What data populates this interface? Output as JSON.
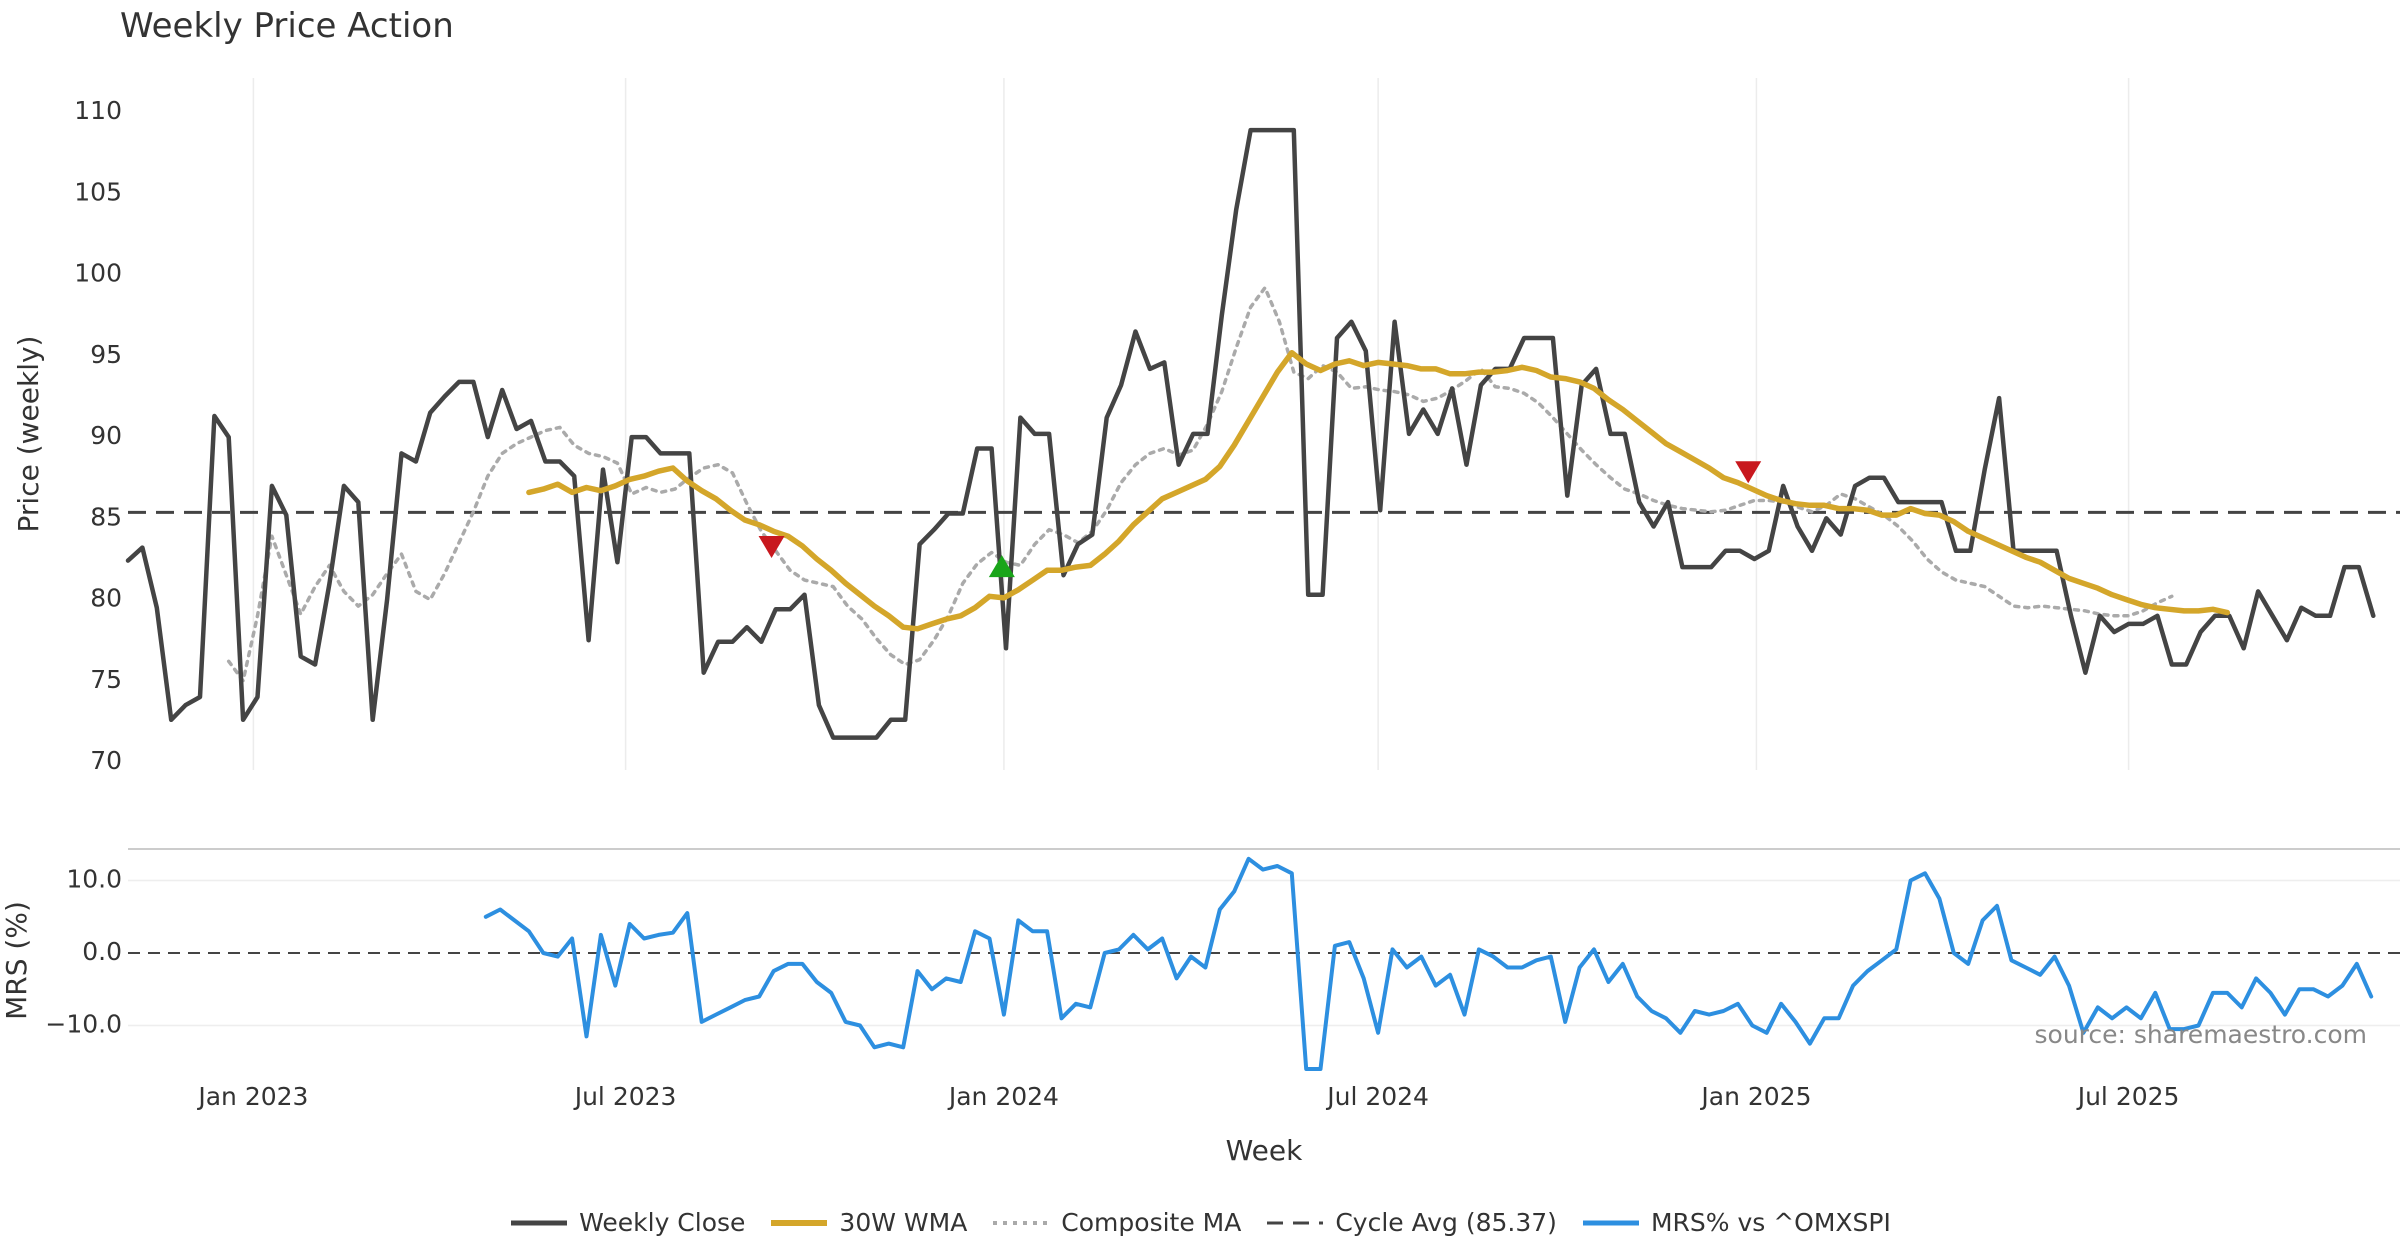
{
  "title": "Weekly Price Action",
  "source": "source: sharemaestro.com",
  "colors": {
    "close": "#444444",
    "wma": "#d4a62a",
    "composite": "#aaaaaa",
    "cycle": "#444444",
    "mrs": "#2d8fe0",
    "marker_up": "#1aa51a",
    "marker_down": "#c8181e"
  },
  "legend": [
    {
      "label": "Weekly Close",
      "key": "close"
    },
    {
      "label": "30W WMA",
      "key": "wma"
    },
    {
      "label": "Composite MA",
      "key": "composite"
    },
    {
      "label": "Cycle Avg (85.37)",
      "key": "cycle"
    },
    {
      "label": "MRS% vs ^OMXSPI",
      "key": "mrs"
    }
  ],
  "chart_data": [
    {
      "type": "line",
      "title": "Weekly Price Action",
      "ylabel": "Price (weekly)",
      "xlabel": "Week",
      "x_domain": [
        "2022-11-01",
        "2025-11-10"
      ],
      "ylim": [
        70,
        111
      ],
      "yticks": [
        70,
        75,
        80,
        85,
        90,
        95,
        100,
        105,
        110
      ],
      "xticks": [
        {
          "date": "2023-01-01",
          "label": "Jan 2023"
        },
        {
          "date": "2023-07-01",
          "label": "Jul 2023"
        },
        {
          "date": "2024-01-01",
          "label": "Jan 2024"
        },
        {
          "date": "2024-07-01",
          "label": "Jul 2024"
        },
        {
          "date": "2025-01-01",
          "label": "Jan 2025"
        },
        {
          "date": "2025-07-01",
          "label": "Jul 2025"
        }
      ],
      "cycle_avg": 85.37,
      "series": [
        {
          "name": "Weekly Close",
          "start": "2022-11-01",
          "step_days": 7,
          "values": [
            82.4,
            83.2,
            79.5,
            72.6,
            73.5,
            74.0,
            91.3,
            90.0,
            72.6,
            74.0,
            87.0,
            85.2,
            76.5,
            76.0,
            81.0,
            87.0,
            86.0,
            72.6,
            80.0,
            89.0,
            88.5,
            91.5,
            92.5,
            93.4,
            93.4,
            90.0,
            92.9,
            90.5,
            91.0,
            88.5,
            88.5,
            87.6,
            77.5,
            88.0,
            82.3,
            90.0,
            90.0,
            89.0,
            89.0,
            89.0,
            75.5,
            77.4,
            77.4,
            78.3,
            77.4,
            79.4,
            79.4,
            80.3,
            73.5,
            71.5,
            71.5,
            71.5,
            71.5,
            72.6,
            72.6,
            83.4,
            84.3,
            85.3,
            85.3,
            89.3,
            89.3,
            77.0,
            91.2,
            90.2,
            90.2,
            81.5,
            83.4,
            84.0,
            91.2,
            93.2,
            96.5,
            94.2,
            94.6,
            88.3,
            90.2,
            90.2,
            97.5,
            104.0,
            108.9,
            108.9,
            108.9,
            108.9,
            80.3,
            80.3,
            96.1,
            97.1,
            95.3,
            85.5,
            97.1,
            90.2,
            91.7,
            90.2,
            93.0,
            88.3,
            93.2,
            94.2,
            94.2,
            96.1,
            96.1,
            96.1,
            86.4,
            93.2,
            94.2,
            90.2,
            90.2,
            86.0,
            84.5,
            86.0,
            82.0,
            82.0,
            82.0,
            83.0,
            83.0,
            82.5,
            83.0,
            87.0,
            84.5,
            83.0,
            85.0,
            84.0,
            87.0,
            87.5,
            87.5,
            86.0,
            86.0,
            86.0,
            86.0,
            83.0,
            83.0,
            88.0,
            92.4,
            83.0,
            83.0,
            83.0,
            83.0,
            79.0,
            75.5,
            79.0,
            78.0,
            78.5,
            78.5,
            79.0,
            76.0,
            76.0,
            78.0,
            79.0,
            79.0,
            77.0,
            80.5,
            79.0,
            77.5,
            79.5,
            79.0,
            79.0,
            82.0,
            82.0,
            79.0
          ]
        },
        {
          "name": "30W WMA",
          "start": "2023-05-15",
          "step_days": 7,
          "values": [
            86.6,
            86.8,
            87.1,
            86.6,
            86.9,
            86.7,
            87.0,
            87.4,
            87.6,
            87.9,
            88.1,
            87.3,
            86.7,
            86.2,
            85.5,
            84.9,
            84.6,
            84.2,
            83.9,
            83.3,
            82.5,
            81.8,
            81.0,
            80.3,
            79.6,
            79.0,
            78.3,
            78.2,
            78.5,
            78.8,
            79.0,
            79.5,
            80.2,
            80.1,
            80.6,
            81.2,
            81.8,
            81.8,
            82.0,
            82.1,
            82.8,
            83.6,
            84.6,
            85.4,
            86.2,
            86.6,
            87.0,
            87.4,
            88.2,
            89.5,
            91.0,
            92.5,
            94.0,
            95.2,
            94.5,
            94.1,
            94.5,
            94.7,
            94.4,
            94.6,
            94.5,
            94.4,
            94.2,
            94.2,
            93.9,
            93.9,
            94.0,
            94.0,
            94.1,
            94.3,
            94.1,
            93.7,
            93.6,
            93.4,
            93.0,
            92.3,
            91.7,
            91.0,
            90.3,
            89.6,
            89.1,
            88.6,
            88.1,
            87.5,
            87.2,
            86.8,
            86.4,
            86.1,
            85.9,
            85.8,
            85.8,
            85.6,
            85.6,
            85.5,
            85.2,
            85.2,
            85.6,
            85.3,
            85.2,
            84.8,
            84.2,
            83.8,
            83.4,
            83.0,
            82.6,
            82.3,
            81.8,
            81.3,
            81.0,
            80.7,
            80.3,
            80.0,
            79.7,
            79.5,
            79.4,
            79.3,
            79.3,
            79.4,
            79.2
          ]
        },
        {
          "name": "Composite MA",
          "start": "2022-12-20",
          "step_days": 7,
          "values": [
            76.2,
            75.0,
            79.0,
            83.9,
            81.5,
            79.1,
            80.8,
            82.1,
            80.5,
            79.6,
            80.3,
            81.6,
            82.8,
            80.5,
            80.0,
            81.6,
            83.5,
            85.4,
            87.6,
            89.0,
            89.6,
            90.0,
            90.4,
            90.6,
            89.5,
            89.0,
            88.8,
            88.4,
            86.5,
            86.9,
            86.6,
            86.8,
            87.5,
            88.1,
            88.3,
            87.8,
            85.9,
            84.2,
            83.0,
            81.8,
            81.2,
            81.0,
            80.8,
            79.6,
            78.8,
            77.6,
            76.6,
            76.0,
            76.3,
            77.5,
            79.0,
            81.0,
            82.2,
            82.9,
            82.3,
            82.1,
            83.4,
            84.3,
            84.0,
            83.5,
            84.2,
            85.5,
            87.2,
            88.3,
            89.0,
            89.3,
            88.9,
            89.2,
            90.8,
            92.8,
            95.5,
            98.0,
            99.2,
            97.1,
            94.0,
            93.6,
            94.4,
            94.0,
            93.0,
            93.1,
            92.9,
            92.8,
            92.6,
            92.2,
            92.4,
            92.9,
            93.5,
            94.2,
            93.1,
            93.0,
            92.7,
            92.1,
            91.2,
            90.2,
            89.2,
            88.3,
            87.5,
            86.8,
            86.5,
            86.1,
            85.8,
            85.6,
            85.5,
            85.4,
            85.5,
            85.8,
            86.1,
            86.1,
            86.0,
            85.7,
            85.4,
            85.8,
            86.5,
            86.2,
            85.7,
            85.2,
            84.5,
            83.6,
            82.5,
            81.7,
            81.2,
            81.0,
            80.8,
            80.2,
            79.6,
            79.5,
            79.6,
            79.5,
            79.4,
            79.3,
            79.1,
            79.0,
            79.0,
            79.3,
            79.8,
            80.2
          ]
        }
      ],
      "markers": [
        {
          "type": "sell",
          "date": "2023-09-10",
          "value": 83.3
        },
        {
          "type": "buy",
          "date": "2023-12-31",
          "value": 82.0
        },
        {
          "type": "sell",
          "date": "2024-12-28",
          "value": 87.9
        }
      ]
    },
    {
      "type": "line",
      "ylabel": "MRS (%)",
      "ylim": [
        -17,
        14
      ],
      "yticks": [
        {
          "value": 10,
          "label": "10.0"
        },
        {
          "value": 0,
          "label": "0.0"
        },
        {
          "value": -10,
          "label": "−10.0"
        }
      ],
      "series": [
        {
          "name": "MRS% vs ^OMXSPI",
          "start": "2023-04-24",
          "step_days": 7,
          "values": [
            5.0,
            6.0,
            4.5,
            3.0,
            0.0,
            -0.5,
            2.0,
            -11.5,
            2.5,
            -4.5,
            4.0,
            2.0,
            2.5,
            2.8,
            5.5,
            -9.5,
            -8.5,
            -7.5,
            -6.5,
            -6.0,
            -2.5,
            -1.5,
            -1.5,
            -4.0,
            -5.5,
            -9.5,
            -10.0,
            -13.0,
            -12.5,
            -13.0,
            -2.5,
            -5.0,
            -3.5,
            -4.0,
            3.0,
            2.0,
            -8.5,
            4.5,
            3.0,
            3.0,
            -9.0,
            -7.0,
            -7.5,
            0.0,
            0.5,
            2.5,
            0.5,
            2.0,
            -3.5,
            -0.5,
            -2.0,
            6.0,
            8.5,
            13.0,
            11.5,
            12.0,
            11.0,
            -16.0,
            -16.0,
            1.0,
            1.5,
            -3.5,
            -11.0,
            0.5,
            -2.0,
            -0.5,
            -4.5,
            -3.0,
            -8.5,
            0.5,
            -0.5,
            -2.0,
            -2.0,
            -1.0,
            -0.5,
            -9.5,
            -2.0,
            0.5,
            -4.0,
            -1.5,
            -6.0,
            -8.0,
            -9.0,
            -11.0,
            -8.0,
            -8.5,
            -8.0,
            -7.0,
            -10.0,
            -11.0,
            -7.0,
            -9.5,
            -12.5,
            -9.0,
            -9.0,
            -4.5,
            -2.5,
            -1.0,
            0.5,
            10.0,
            11.0,
            7.5,
            0.0,
            -1.5,
            4.5,
            6.5,
            -1.0,
            -2.0,
            -3.0,
            -0.5,
            -4.5,
            -11.0,
            -7.5,
            -9.0,
            -7.5,
            -9.0,
            -5.5,
            -10.5,
            -10.5,
            -10.0,
            -5.5,
            -5.5,
            -7.5,
            -3.5,
            -5.5,
            -8.5,
            -5.0,
            -5.0,
            -6.0,
            -4.5,
            -1.5,
            -6.0
          ]
        }
      ]
    }
  ],
  "x_axis_label": "Week"
}
